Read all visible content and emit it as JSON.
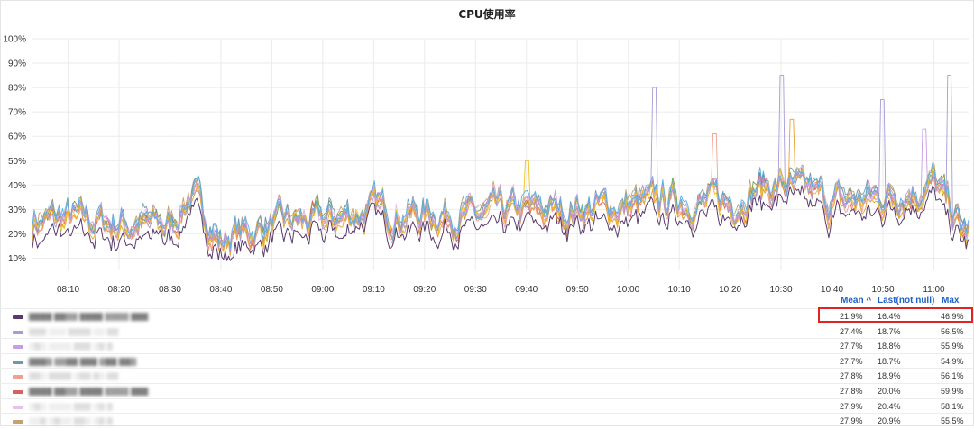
{
  "chart_data": {
    "type": "line",
    "title": "CPU使用率",
    "xlabel": "",
    "ylabel": "",
    "x_ticks": [
      "08:10",
      "08:20",
      "08:30",
      "08:40",
      "08:50",
      "09:00",
      "09:10",
      "09:20",
      "09:30",
      "09:40",
      "09:50",
      "10:00",
      "10:10",
      "10:20",
      "10:30",
      "10:40",
      "10:50",
      "11:00"
    ],
    "y_ticks": [
      "10%",
      "20%",
      "30%",
      "40%",
      "50%",
      "60%",
      "70%",
      "80%",
      "90%",
      "100%"
    ],
    "ylim": [
      5,
      100
    ],
    "xlim": [
      "08:03",
      "11:07"
    ],
    "grid": true,
    "legend_position": "bottom-table",
    "overall_trend": {
      "x": [
        "08:03",
        "08:10",
        "08:20",
        "08:30",
        "08:34",
        "08:40",
        "08:50",
        "09:00",
        "09:10",
        "09:20",
        "09:30",
        "09:40",
        "09:50",
        "10:00",
        "10:10",
        "10:20",
        "10:25",
        "10:30",
        "10:40",
        "10:50",
        "11:00",
        "11:06"
      ],
      "y": [
        25,
        26,
        24,
        23,
        36,
        17,
        24,
        25,
        30,
        28,
        27,
        29,
        30,
        31,
        34,
        32,
        39,
        40,
        33,
        35,
        40,
        20
      ]
    },
    "series_colors": [
      "#5a3a6e",
      "#a79ad8",
      "#c79ee0",
      "#6e9aa8",
      "#f0a090",
      "#d96060",
      "#e8c0e8",
      "#c8a070",
      "#e8a030",
      "#f0c020",
      "#7a9a40",
      "#5ab0e0"
    ],
    "legend_columns": [
      "Mean ^",
      "Last(not null)",
      "Max"
    ],
    "legend_rows": [
      {
        "name": "████ ██▓▓ ████ ▓▓▓▓ ███",
        "color": "#5a3a6e",
        "mean": "21.9%",
        "last": "16.4%",
        "max": "46.9%"
      },
      {
        "name": "▒▒▒ ░░░ ▒▒▒▒ ░░ ▒▒",
        "color": "#a79ad8",
        "mean": "27.4%",
        "last": "18.7%",
        "max": "56.5%"
      },
      {
        "name": "░▒░ ░░░░ ▒▒▒ ░▒ ▒",
        "color": "#c79ee0",
        "mean": "27.7%",
        "last": "18.8%",
        "max": "55.9%"
      },
      {
        "name": "███▓ ▓▓██ ███ ▓██ ██▓",
        "color": "#6e9aa8",
        "mean": "27.7%",
        "last": "18.7%",
        "max": "54.9%"
      },
      {
        "name": "▒▒░ ▒▒▒▒ ░▒▒ ▒░ ▒▒",
        "color": "#f0a090",
        "mean": "27.8%",
        "last": "18.9%",
        "max": "56.1%"
      },
      {
        "name": "████ ██▓▓ ████ ▓▓▓▓ ███",
        "color": "#d96060",
        "mean": "27.8%",
        "last": "20.0%",
        "max": "59.9%"
      },
      {
        "name": "░▒░ ░░░░ ▒▒▒ ░▒ ▒",
        "color": "#e8c0e8",
        "mean": "27.9%",
        "last": "20.4%",
        "max": "58.1%"
      },
      {
        "name": "░░▒ ░▒░░ ▒▒░ ░▒ ▒",
        "color": "#c8a070",
        "mean": "27.9%",
        "last": "20.9%",
        "max": "55.5%"
      }
    ],
    "highlighted_row": 0
  }
}
